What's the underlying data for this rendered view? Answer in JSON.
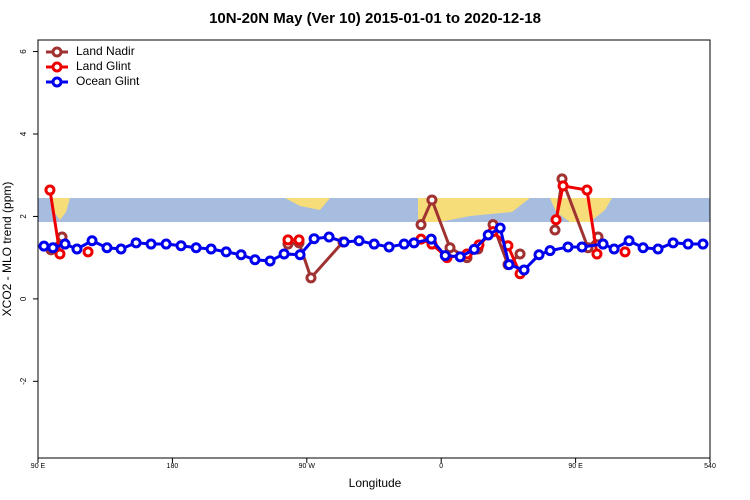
{
  "chart_data": {
    "type": "line",
    "title": "10N-20N May (Ver 10)   2015-01-01 to 2020-12-18",
    "x_label": "Longitude",
    "y_label": "XCO2 - MLO trend (ppm)",
    "xlim": [
      90,
      540
    ],
    "ylim": [
      -3.86,
      6.28
    ],
    "xticks": [
      {
        "value": 90,
        "label": "90 E"
      },
      180,
      {
        "value": 270,
        "label": "90 W"
      },
      {
        "value": 360,
        "label": "0"
      },
      {
        "value": 450,
        "label": "90 E"
      },
      540
    ],
    "yticks": [
      -2,
      0,
      2,
      4,
      6
    ],
    "legend": "top-left",
    "series": [
      {
        "name": "Land Nadir",
        "color": "#a03232",
        "x": [
          98.7,
          106.1,
          null,
          257.4,
          264.8,
          272.8,
          294.2,
          null,
          346.5,
          353.8,
          365.9,
          377.3,
          384.6,
          394.7,
          404.7,
          412.8,
          null,
          436.2,
          440.9,
          458.3,
          465.0
        ],
        "values": [
          1.19,
          1.5,
          null,
          1.33,
          1.36,
          0.51,
          1.38,
          null,
          1.8,
          2.4,
          1.24,
          1.0,
          1.21,
          1.8,
          0.83,
          1.09,
          null,
          1.67,
          2.91,
          1.24,
          1.5
        ]
      },
      {
        "name": "Land Glint",
        "color": "#ee0000",
        "x": [
          98.0,
          104.7,
          null,
          123.5,
          null,
          257.4,
          264.8,
          null,
          346.5,
          353.8,
          363.9,
          377.3,
          385.3,
          394.7,
          404.7,
          412.8,
          null,
          436.9,
          441.6,
          457.6,
          464.3,
          null,
          483.1
        ],
        "values": [
          2.64,
          1.09,
          null,
          1.14,
          null,
          1.43,
          1.43,
          null,
          1.45,
          1.33,
          1.0,
          1.09,
          1.31,
          1.63,
          1.29,
          0.61,
          null,
          1.92,
          2.74,
          2.64,
          1.09,
          null,
          1.14
        ]
      },
      {
        "name": "Ocean Glint",
        "color": "#0000ee",
        "x": [
          94.0,
          100.0,
          108.1,
          116.1,
          126.2,
          136.2,
          145.6,
          155.7,
          165.7,
          175.8,
          185.8,
          195.9,
          205.9,
          216.0,
          226.0,
          235.3,
          245.4,
          254.8,
          265.5,
          274.9,
          284.9,
          295.0,
          305.0,
          315.1,
          325.1,
          335.2,
          341.8,
          353.3,
          362.7,
          372.7,
          382.1,
          391.5,
          399.5,
          405.4,
          415.5,
          425.5,
          432.9,
          444.9,
          454.3,
          468.4,
          475.8,
          485.8,
          495.2,
          505.2,
          515.3,
          525.3,
          535.3
        ],
        "values": [
          1.28,
          1.24,
          1.33,
          1.21,
          1.41,
          1.24,
          1.21,
          1.36,
          1.33,
          1.33,
          1.29,
          1.24,
          1.21,
          1.14,
          1.07,
          0.95,
          0.92,
          1.09,
          1.07,
          1.46,
          1.5,
          1.38,
          1.41,
          1.33,
          1.26,
          1.33,
          1.36,
          1.45,
          1.05,
          1.02,
          1.2,
          1.55,
          1.72,
          0.83,
          0.7,
          1.07,
          1.17,
          1.26,
          1.26,
          1.33,
          1.21,
          1.41,
          1.24,
          1.21,
          1.36,
          1.33,
          1.33
        ]
      }
    ]
  }
}
